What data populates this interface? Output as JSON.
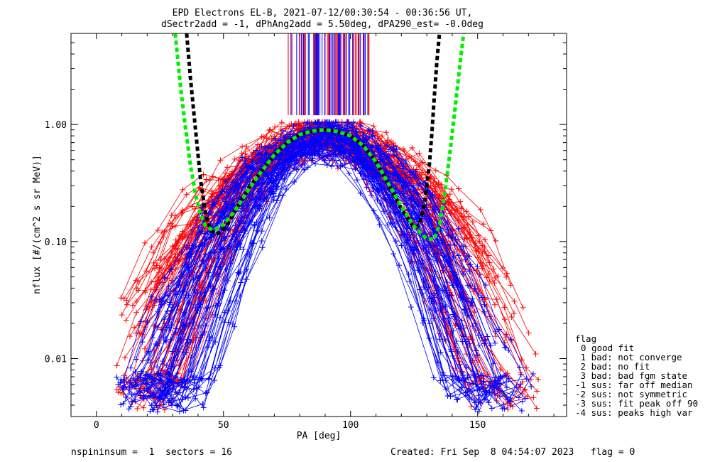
{
  "header": {
    "title_line1": "EPD Electrons EL-B, 2021-07-12/00:30:54 - 00:36:56 UT,",
    "title_line2": "dSectr2add = -1, dPhAng2add = 5.50deg, dPA290_est=  -0.0deg"
  },
  "footer": {
    "left": "nspininsum =  1  sectors = 16",
    "right": "Created: Fri Sep  8 04:54:07 2023   flag = 0"
  },
  "legend": {
    "title": "flag",
    "items": [
      "0 good fit",
      " 1 bad: not converge",
      " 2 bad: no fit",
      " 3 bad: bad fgm state",
      "-1 sus: far off median",
      "-2 sus: not symmetric",
      "-3 sus: fit peak off 90",
      "-4 sus: peaks high var"
    ]
  },
  "colors": {
    "red": "#ff0000",
    "blue": "#0000ff",
    "black": "#000000",
    "green": "#00ee00"
  },
  "chart_data": {
    "type": "line",
    "xlabel": "PA [deg]",
    "ylabel": "nflux [#/(cm^2 s sr MeV)]",
    "x_ticks": [
      "0",
      "50",
      "100",
      "150"
    ],
    "y_ticks": [
      "0.01",
      "0.10",
      "1.00"
    ],
    "xlim": [
      -10,
      185
    ],
    "ylim": [
      0.0032,
      6.0
    ],
    "y_scale": "log",
    "series": [
      {
        "color": "black",
        "style": "dashed-thick",
        "x": [
          35.5,
          37,
          39,
          41,
          43,
          45,
          47,
          49,
          52,
          55,
          60,
          65,
          70,
          75,
          80,
          85,
          90,
          95,
          100,
          105,
          110,
          115,
          120,
          125,
          127,
          129,
          131,
          132,
          133,
          134,
          135
        ],
        "y": [
          6.0,
          2.5,
          0.9,
          0.33,
          0.17,
          0.125,
          0.115,
          0.12,
          0.145,
          0.19,
          0.29,
          0.4,
          0.55,
          0.7,
          0.82,
          0.88,
          0.9,
          0.87,
          0.8,
          0.66,
          0.48,
          0.31,
          0.19,
          0.13,
          0.14,
          0.2,
          0.45,
          0.85,
          1.8,
          3.5,
          6.0
        ]
      },
      {
        "color": "green",
        "style": "dashed-thick",
        "x": [
          31,
          33,
          35,
          37,
          39,
          41,
          43,
          46,
          50,
          55,
          60,
          65,
          70,
          75,
          80,
          85,
          90,
          95,
          100,
          105,
          110,
          115,
          120,
          125,
          130,
          133,
          135,
          137,
          139,
          141,
          143,
          144.5
        ],
        "y": [
          6.0,
          2.2,
          0.95,
          0.45,
          0.25,
          0.17,
          0.135,
          0.125,
          0.14,
          0.19,
          0.28,
          0.4,
          0.55,
          0.7,
          0.82,
          0.88,
          0.9,
          0.87,
          0.8,
          0.66,
          0.48,
          0.31,
          0.2,
          0.135,
          0.105,
          0.105,
          0.14,
          0.25,
          0.55,
          1.3,
          3.2,
          6.0
        ]
      }
    ],
    "scatter_series": [
      {
        "color": "red",
        "n_profiles": 70
      },
      {
        "color": "blue",
        "n_profiles": 70
      }
    ],
    "grid": false,
    "legend_position": "right"
  }
}
